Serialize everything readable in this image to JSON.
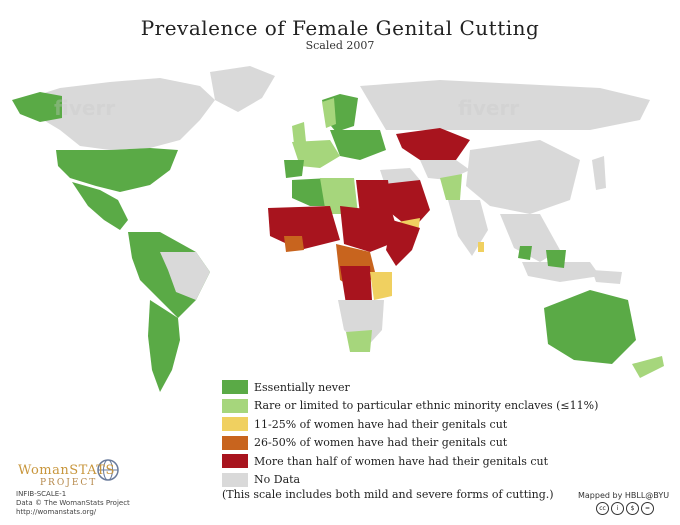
{
  "title": "Prevalence of Female Genital Cutting",
  "subtitle": "Scaled 2007",
  "colors": {
    "ocean": "#ffffff",
    "no_data": "#d9d9d9",
    "essentially_never": "#5aaa46",
    "rare": "#a6d67c",
    "pct_11_25": "#f0d060",
    "pct_26_50": "#c8641e",
    "more_than_half": "#a8141e"
  },
  "legend": [
    {
      "label": "Essentially never",
      "color": "#5aaa46"
    },
    {
      "label": "Rare or limited to particular ethnic minority enclaves (≤11%)",
      "color": "#a6d67c"
    },
    {
      "label": "11-25% of women have had their genitals cut",
      "color": "#f0d060"
    },
    {
      "label": "26-50% of women have had their genitals cut",
      "color": "#c8641e"
    },
    {
      "label": "More than half of women have had their genitals cut",
      "color": "#a8141e"
    },
    {
      "label": "No Data",
      "color": "#d9d9d9"
    }
  ],
  "note": "(This scale includes both mild and severe forms of cutting.)",
  "logo": {
    "brand": "WomanSTATS",
    "sub": "PROJECT"
  },
  "meta": {
    "code": "INFIB-SCALE-1",
    "data_credit": "Data © The WomanStats Project",
    "url": "http://womanstats.org/"
  },
  "mapped_by": "Mapped by HBLL@BYU",
  "watermark": "fiverr"
}
